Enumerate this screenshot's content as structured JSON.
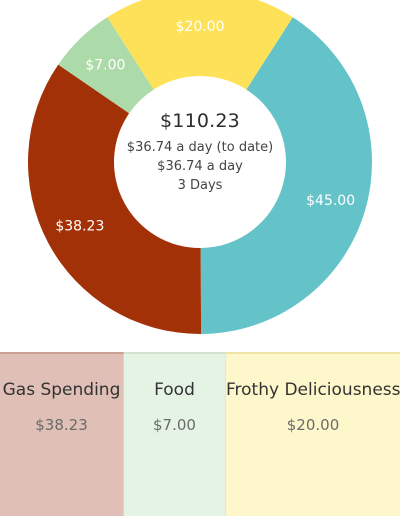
{
  "chart_data": {
    "type": "pie",
    "slices": [
      {
        "name": "Frothy Deliciousness",
        "value": 20.0,
        "label": "$20.00",
        "color": "#fde158"
      },
      {
        "name": "",
        "value": 45.0,
        "label": "$45.00",
        "color": "#64c3c9"
      },
      {
        "name": "Gas Spending",
        "value": 38.23,
        "label": "$38.23",
        "color": "#a33108"
      },
      {
        "name": "Food",
        "value": 7.0,
        "label": "$7.00",
        "color": "#addaa9"
      }
    ],
    "hole": true
  },
  "summary": {
    "total": "$110.23",
    "per_day_to_date": "$36.74 a day (to date)",
    "per_day": "$36.74 a day",
    "days": "3 Days"
  },
  "categories": [
    {
      "name": "Gas Spending",
      "amount": "$38.23",
      "color": "#dfbfb6"
    },
    {
      "name": "Food",
      "amount": "$7.00",
      "color": "#e4f3e4"
    },
    {
      "name": "Frothy Deliciousness",
      "amount": "$20.00",
      "color": "#fff7cc"
    }
  ],
  "colors": {
    "background": "#ffffff",
    "center_text": "#333333",
    "amount_text": "#6b6b6b"
  }
}
